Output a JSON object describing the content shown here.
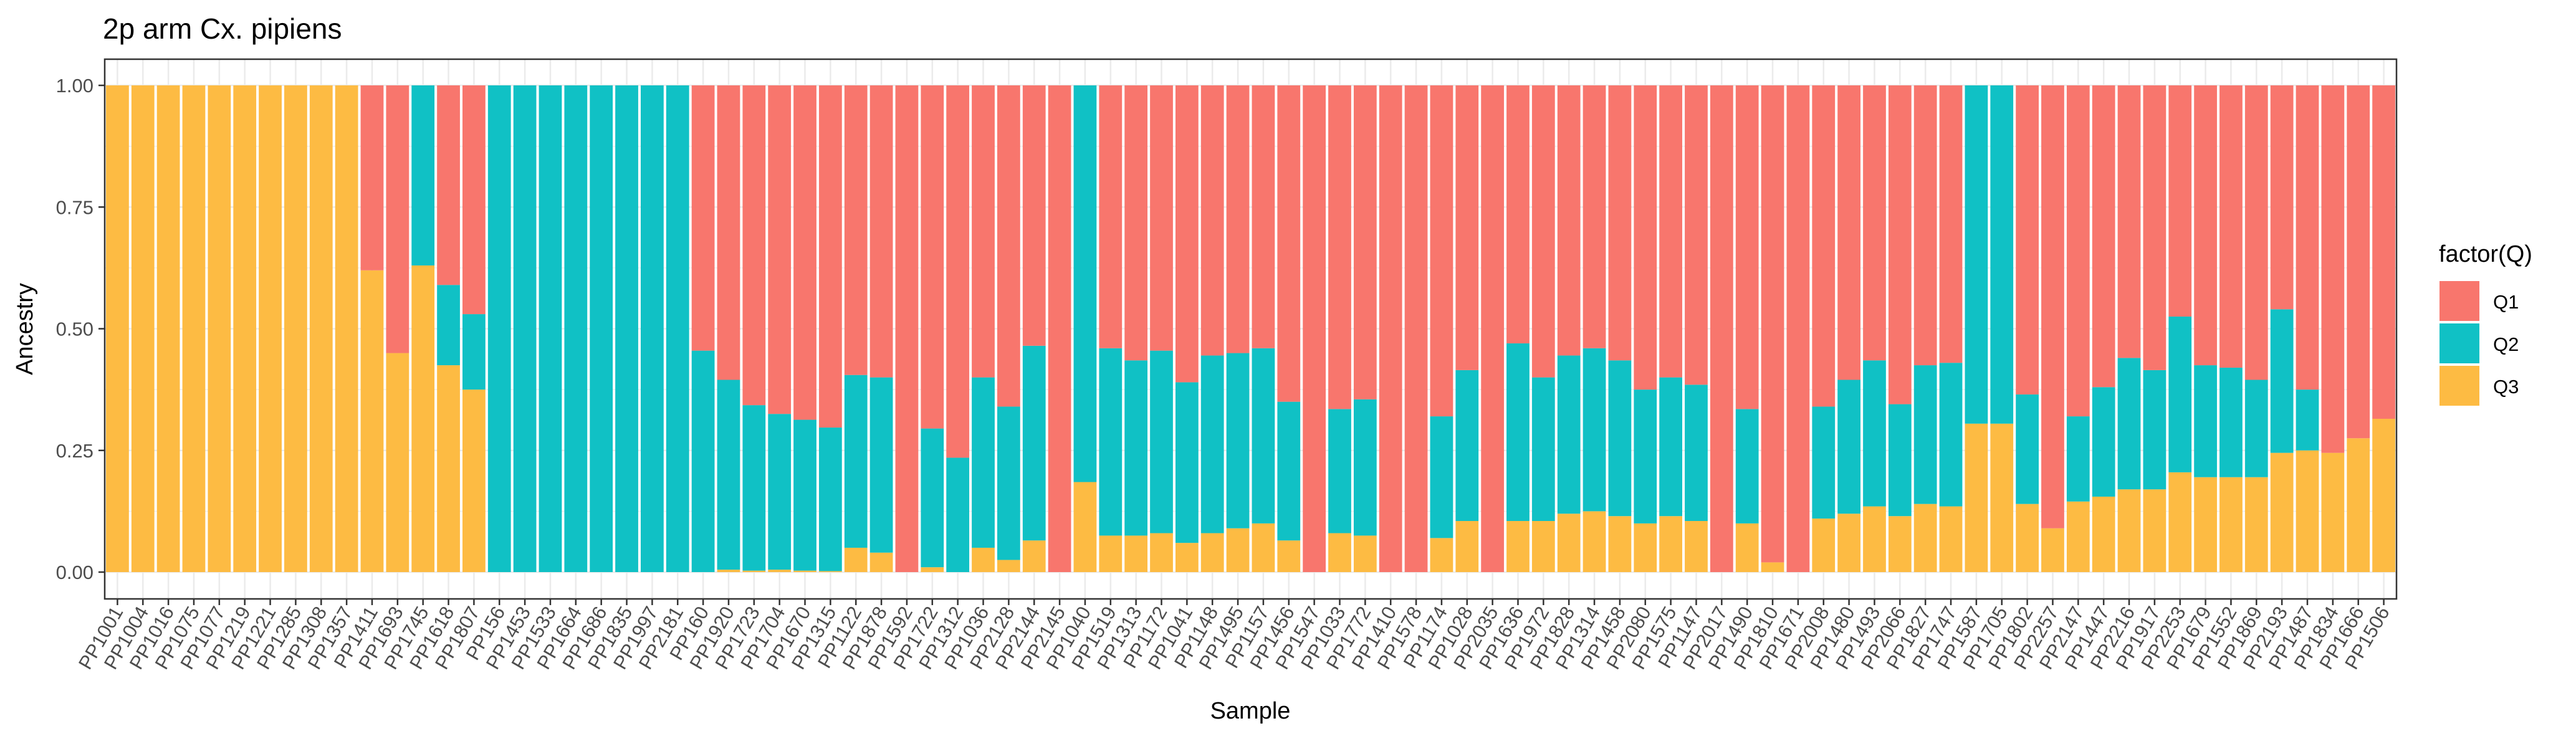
{
  "chart_data": {
    "type": "bar",
    "stacked": true,
    "title": "2p arm Cx. pipiens",
    "xlabel": "Sample",
    "ylabel": "Ancestry",
    "ylim": [
      0,
      1
    ],
    "yticks": [
      "0.00",
      "0.25",
      "0.50",
      "0.75",
      "1.00"
    ],
    "grid": true,
    "legend": {
      "title": "factor(Q)",
      "position": "right"
    },
    "categories": [
      "PP1001",
      "PP1004",
      "PP1016",
      "PP1075",
      "PP1077",
      "PP1219",
      "PP1221",
      "PP1285",
      "PP1308",
      "PP1357",
      "PP1411",
      "PP1693",
      "PP1745",
      "PP1618",
      "PP1807",
      "PP156",
      "PP1453",
      "PP1533",
      "PP1664",
      "PP1686",
      "PP1835",
      "PP1997",
      "PP2181",
      "PP160",
      "PP1920",
      "PP1723",
      "PP1704",
      "PP1670",
      "PP1315",
      "PP1122",
      "PP1878",
      "PP1592",
      "PP1722",
      "PP1312",
      "PP1036",
      "PP2128",
      "PP2144",
      "PP2145",
      "PP1040",
      "PP1519",
      "PP1313",
      "PP1172",
      "PP1041",
      "PP1148",
      "PP1495",
      "PP1157",
      "PP1456",
      "PP1547",
      "PP1033",
      "PP1772",
      "PP1410",
      "PP1578",
      "PP1174",
      "PP1028",
      "PP2035",
      "PP1636",
      "PP1972",
      "PP1828",
      "PP1314",
      "PP1458",
      "PP2080",
      "PP1575",
      "PP1147",
      "PP2017",
      "PP1490",
      "PP1810",
      "PP1671",
      "PP2008",
      "PP1480",
      "PP1493",
      "PP2066",
      "PP1827",
      "PP1747",
      "PP1587",
      "PP1705",
      "PP1802",
      "PP2257",
      "PP2147",
      "PP1447",
      "PP2216",
      "PP1917",
      "PP2253",
      "PP1679",
      "PP1552",
      "PP1869",
      "PP2193",
      "PP1487",
      "PP1834",
      "PP1666",
      "PP1506"
    ],
    "series": [
      {
        "name": "Q3",
        "color": "#FDBB43",
        "values": [
          1,
          1,
          1,
          1,
          1,
          1,
          1,
          1,
          1,
          1,
          0.62,
          0.45,
          0.63,
          0.425,
          0.375,
          0,
          0,
          0,
          0,
          0,
          0,
          0,
          0,
          0,
          0.005,
          0.003,
          0.005,
          0.003,
          0.002,
          0.05,
          0.04,
          0,
          0.01,
          0,
          0.05,
          0.025,
          0.065,
          0,
          0.185,
          0.075,
          0.075,
          0.08,
          0.06,
          0.08,
          0.09,
          0.1,
          0.065,
          0,
          0.08,
          0.075,
          0,
          0,
          0.07,
          0.105,
          0,
          0.105,
          0.105,
          0.12,
          0.125,
          0.115,
          0.1,
          0.115,
          0.105,
          0,
          0.1,
          0.02,
          0,
          0.11,
          0.12,
          0.135,
          0.115,
          0.14,
          0.135,
          0.305,
          0.305,
          0.14,
          0.09,
          0.145,
          0.155,
          0.17,
          0.17,
          0.205,
          0.195,
          0.195,
          0.195,
          0.245,
          0.25,
          0.245,
          0.275,
          0.315
        ]
      },
      {
        "name": "Q2",
        "color": "#10C1C5",
        "values": [
          0,
          0,
          0,
          0,
          0,
          0,
          0,
          0,
          0,
          0,
          0,
          0,
          0.37,
          0.165,
          0.155,
          1,
          1,
          1,
          1,
          1,
          1,
          1,
          1,
          0.455,
          0.39,
          0.34,
          0.32,
          0.31,
          0.295,
          0.355,
          0.36,
          0,
          0.285,
          0.235,
          0.35,
          0.315,
          0.4,
          0,
          0.815,
          0.385,
          0.36,
          0.375,
          0.33,
          0.365,
          0.36,
          0.36,
          0.285,
          0,
          0.255,
          0.28,
          0,
          0,
          0.25,
          0.31,
          0,
          0.365,
          0.295,
          0.325,
          0.335,
          0.32,
          0.275,
          0.285,
          0.28,
          0,
          0.235,
          0,
          0,
          0.23,
          0.275,
          0.3,
          0.23,
          0.285,
          0.295,
          0.695,
          0.695,
          0.225,
          0,
          0.175,
          0.225,
          0.27,
          0.245,
          0.32,
          0.23,
          0.225,
          0.2,
          0.295,
          0.125,
          0,
          0,
          0
        ]
      },
      {
        "name": "Q1",
        "color": "#F8766D",
        "values": [
          0,
          0,
          0,
          0,
          0,
          0,
          0,
          0,
          0,
          0,
          0.38,
          0.55,
          0,
          0.41,
          0.47,
          0,
          0,
          0,
          0,
          0,
          0,
          0,
          0,
          0.545,
          0.605,
          0.657,
          0.675,
          0.687,
          0.703,
          0.595,
          0.6,
          1,
          0.705,
          0.765,
          0.6,
          0.66,
          0.535,
          1,
          0,
          0.54,
          0.565,
          0.545,
          0.61,
          0.555,
          0.55,
          0.54,
          0.65,
          1,
          0.665,
          0.645,
          1,
          1,
          0.68,
          0.585,
          1,
          0.53,
          0.6,
          0.555,
          0.54,
          0.565,
          0.625,
          0.6,
          0.615,
          1,
          0.665,
          0.98,
          1,
          0.66,
          0.605,
          0.565,
          0.655,
          0.575,
          0.57,
          0,
          0,
          0.635,
          0.91,
          0.68,
          0.62,
          0.56,
          0.585,
          0.475,
          0.575,
          0.58,
          0.605,
          0.46,
          0.625,
          0.755,
          0.725,
          0.685
        ]
      }
    ]
  }
}
